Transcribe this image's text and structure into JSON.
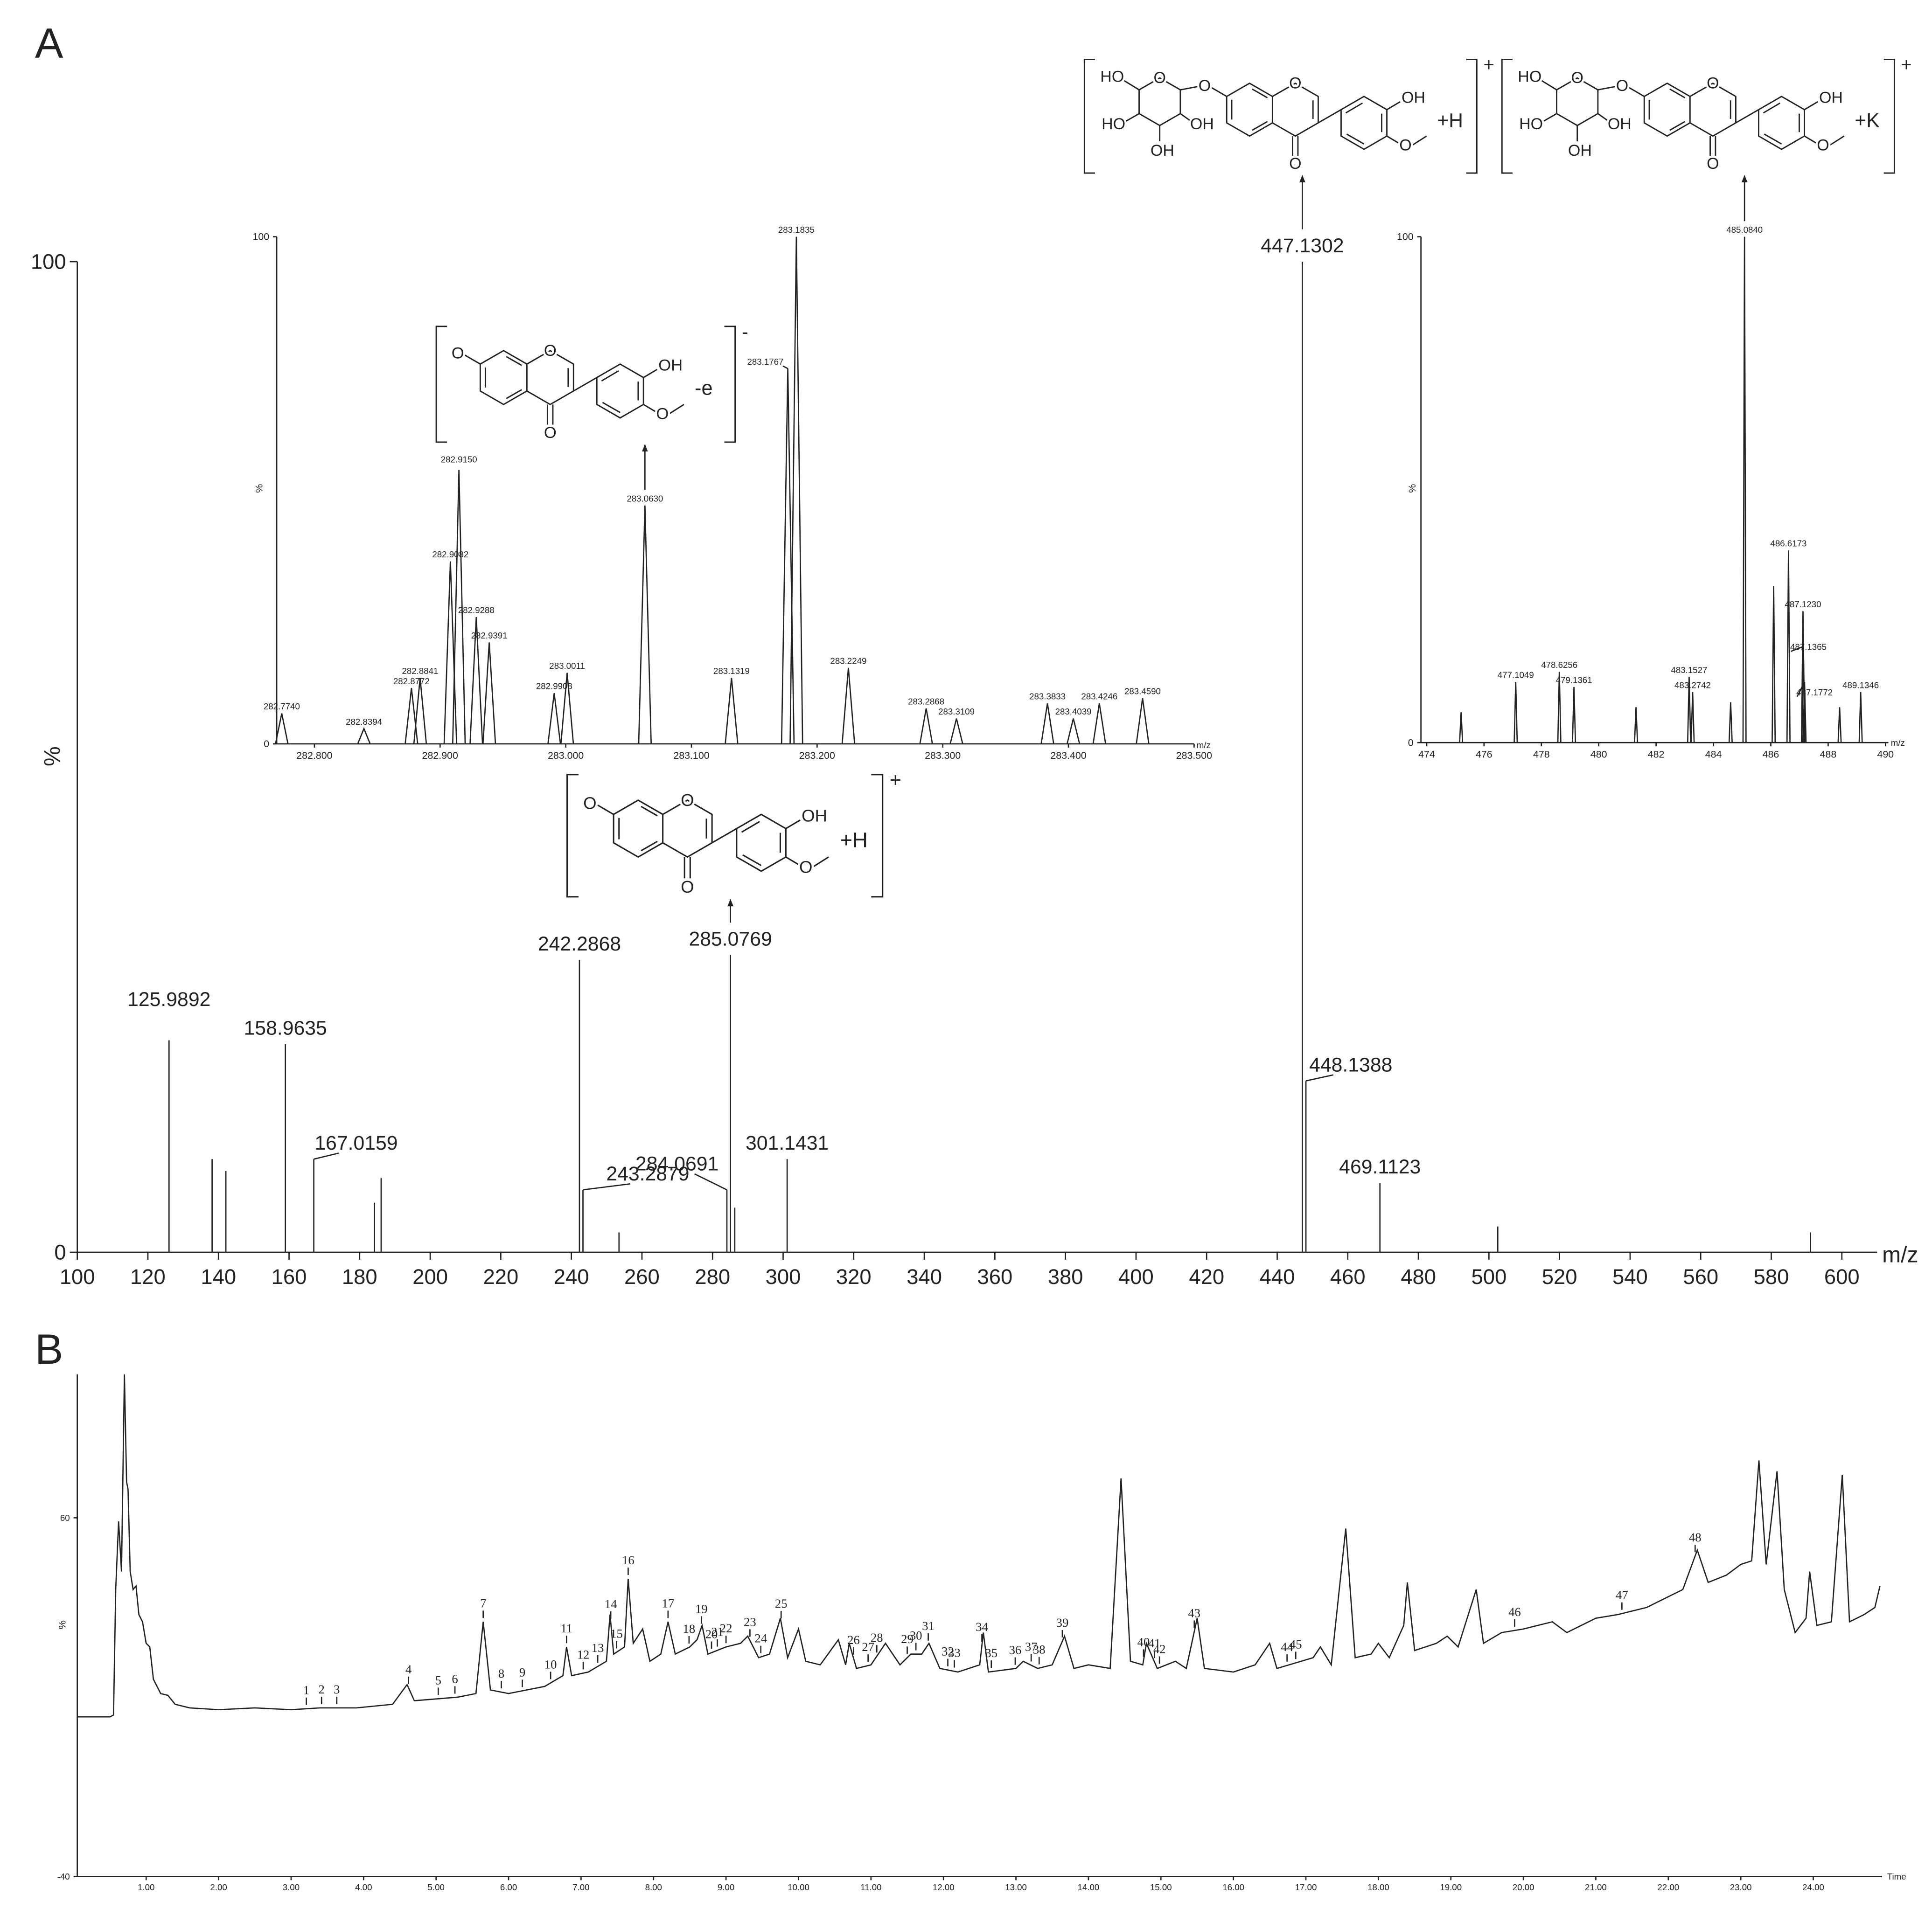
{
  "chart_data": [
    {
      "type": "stem",
      "panel": "A",
      "xlabel": "m/z",
      "ylabel": "%",
      "xlim": [
        100,
        610
      ],
      "ylim": [
        0,
        100
      ],
      "xticks": [
        100,
        120,
        140,
        160,
        180,
        200,
        220,
        240,
        260,
        280,
        300,
        320,
        340,
        360,
        380,
        400,
        420,
        440,
        460,
        480,
        500,
        520,
        540,
        560,
        580,
        600
      ],
      "yticks": [
        0,
        100
      ],
      "x": [
        125.9892,
        158.9635,
        167.0159,
        242.2868,
        243.2879,
        284.0691,
        285.0769,
        301.1431,
        447.1302,
        448.1388,
        469.1123
      ],
      "values": [
        21.4,
        21,
        9.4,
        29.5,
        6.3,
        6.3,
        30,
        9.4,
        100,
        17.3,
        7
      ],
      "minor_peaks": {
        "x": [
          138.2,
          142.1,
          184.2,
          186.1,
          253.5,
          286.3,
          502.5,
          591.1
        ],
        "values": [
          9.4,
          8.2,
          5,
          7.5,
          2,
          4.5,
          2.6,
          2
        ]
      },
      "structures": [
        {
          "atoms": [
            "O",
            "O",
            "O",
            "OH",
            "O"
          ],
          "adduct": "+H",
          "charge": "+"
        },
        {
          "atoms": [
            "O",
            "O",
            "O",
            "OH",
            "O"
          ],
          "sugar_atoms": [
            "HO",
            "O",
            "HO",
            "OH",
            "OH"
          ],
          "adduct": "+H",
          "charge": "+"
        }
      ]
    },
    {
      "type": "profile",
      "xlabel": "m/z",
      "ylabel": "%",
      "xlim": [
        282.77,
        283.5
      ],
      "ylim": [
        0,
        100
      ],
      "xticks": [
        {
          "value": 282.8,
          "label": "282.800"
        },
        {
          "value": 282.9,
          "label": "282.900"
        },
        {
          "value": 283.0,
          "label": "283.000"
        },
        {
          "value": 283.1,
          "label": "283.100"
        },
        {
          "value": 283.2,
          "label": "283.200"
        },
        {
          "value": 283.3,
          "label": "283.300"
        },
        {
          "value": 283.4,
          "label": "283.400"
        },
        {
          "value": 283.5,
          "label": "283.500"
        }
      ],
      "yticks": [
        0,
        100
      ],
      "x": [
        282.774,
        282.8394,
        282.8772,
        282.8841,
        282.9082,
        282.915,
        282.9288,
        282.9391,
        282.9908,
        283.0011,
        283.063,
        283.1319,
        283.1767,
        283.1835,
        283.2249,
        283.2868,
        283.3109,
        283.3833,
        283.4039,
        283.4246,
        283.459
      ],
      "values": [
        6,
        3,
        11,
        13,
        36,
        54,
        25,
        20,
        10,
        14,
        47,
        13,
        74,
        100,
        15,
        7,
        5,
        8,
        5,
        8,
        9
      ],
      "peak_labels": [
        "282.7740",
        "282.8394",
        "282.8772",
        "282.8841",
        "282.9082",
        "282.9150",
        "282.9288",
        "282.9391",
        "282.9908",
        "283.0011",
        "283.0630",
        "283.1319",
        "283.1767",
        "283.1835",
        "283.2249",
        "283.2868",
        "283.3109",
        "283.3833",
        "283.4039",
        "283.4246",
        "283.4590"
      ],
      "structures": [
        {
          "atoms": [
            "O",
            "O",
            "O",
            "OH",
            "O"
          ],
          "adduct": "-e",
          "charge": "-"
        }
      ]
    },
    {
      "type": "profile",
      "xlabel": "m/z",
      "ylabel": "%",
      "xlim": [
        473.8,
        490.1
      ],
      "ylim": [
        0,
        100
      ],
      "xticks": [
        474,
        476,
        478,
        480,
        482,
        484,
        486,
        488,
        490
      ],
      "yticks": [
        0,
        100
      ],
      "x": [
        477.1049,
        478.6256,
        479.1361,
        483.1527,
        483.2742,
        485.084,
        486.6173,
        487.123,
        487.1365,
        487.1772,
        489.1346
      ],
      "values": [
        12,
        14,
        11,
        13,
        10,
        100,
        38,
        26,
        19,
        12,
        10
      ],
      "peak_labels": [
        "477.1049",
        "478.6256",
        "479.1361",
        "483.1527",
        "483.2742",
        "485.0840",
        "486.6173",
        "487.1230",
        "487.1365",
        "487.1772",
        "489.1346"
      ],
      "minor_peaks": {
        "x": [
          486.1,
          475.2,
          481.3,
          484.6,
          488.4
        ],
        "values": [
          31,
          6,
          7,
          8,
          7
        ]
      },
      "structures": [
        {
          "atoms": [
            "O",
            "O",
            "O",
            "OH",
            "O"
          ],
          "sugar_atoms": [
            "HO",
            "O",
            "HO",
            "OH",
            "OH"
          ],
          "adduct": "+K",
          "charge": "+"
        }
      ]
    },
    {
      "type": "line",
      "panel": "B",
      "xlabel": "Time",
      "ylabel": "%",
      "xlim": [
        0.05,
        24.95
      ],
      "ylim": [
        -40,
        100
      ],
      "xticks": [
        {
          "value": 1,
          "label": "1.00"
        },
        {
          "value": 2,
          "label": "2.00"
        },
        {
          "value": 3,
          "label": "3.00"
        },
        {
          "value": 4,
          "label": "4.00"
        },
        {
          "value": 5,
          "label": "5.00"
        },
        {
          "value": 6,
          "label": "6.00"
        },
        {
          "value": 7,
          "label": "7.00"
        },
        {
          "value": 8,
          "label": "8.00"
        },
        {
          "value": 9,
          "label": "9.00"
        },
        {
          "value": 10,
          "label": "10.00"
        },
        {
          "value": 11,
          "label": "11.00"
        },
        {
          "value": 12,
          "label": "12.00"
        },
        {
          "value": 13,
          "label": "13.00"
        },
        {
          "value": 14,
          "label": "14.00"
        },
        {
          "value": 15,
          "label": "15.00"
        },
        {
          "value": 16,
          "label": "16.00"
        },
        {
          "value": 17,
          "label": "17.00"
        },
        {
          "value": 18,
          "label": "18.00"
        },
        {
          "value": 19,
          "label": "19.00"
        },
        {
          "value": 20,
          "label": "20.00"
        },
        {
          "value": 21,
          "label": "21.00"
        },
        {
          "value": 22,
          "label": "22.00"
        },
        {
          "value": 23,
          "label": "23.00"
        },
        {
          "value": 24,
          "label": "24.00"
        }
      ],
      "yticks": [
        -40,
        60
      ],
      "x": [
        0.05,
        0.5,
        0.55,
        0.58,
        0.62,
        0.66,
        0.7,
        0.73,
        0.75,
        0.78,
        0.82,
        0.86,
        0.9,
        0.95,
        1.0,
        1.05,
        1.1,
        1.2,
        1.3,
        1.4,
        1.6,
        2.0,
        2.5,
        3.0,
        3.4,
        3.9,
        4.4,
        4.6,
        4.7,
        5.0,
        5.3,
        5.55,
        5.65,
        5.75,
        6.0,
        6.5,
        6.75,
        6.8,
        6.87,
        7.1,
        7.35,
        7.4,
        7.45,
        7.6,
        7.65,
        7.72,
        7.85,
        7.95,
        8.1,
        8.2,
        8.3,
        8.5,
        8.6,
        8.67,
        8.75,
        9.0,
        9.2,
        9.3,
        9.45,
        9.6,
        9.75,
        9.85,
        10.0,
        10.1,
        10.3,
        10.55,
        10.65,
        10.7,
        10.8,
        11.0,
        11.2,
        11.4,
        11.55,
        11.7,
        11.8,
        11.95,
        12.2,
        12.5,
        12.55,
        12.62,
        13.0,
        13.1,
        13.3,
        13.5,
        13.67,
        13.8,
        14.0,
        14.3,
        14.45,
        14.58,
        14.75,
        14.8,
        14.95,
        15.2,
        15.35,
        15.5,
        15.6,
        16.0,
        16.3,
        16.5,
        16.6,
        17.1,
        17.2,
        17.35,
        17.55,
        17.68,
        17.9,
        18.0,
        18.15,
        18.35,
        18.4,
        18.5,
        18.8,
        18.95,
        19.1,
        19.35,
        19.45,
        19.7,
        20.0,
        20.2,
        20.4,
        20.6,
        21.0,
        21.3,
        21.5,
        21.7,
        22.0,
        22.2,
        22.4,
        22.55,
        22.8,
        23.0,
        23.15,
        23.25,
        23.35,
        23.5,
        23.6,
        23.75,
        23.9,
        23.95,
        24.05,
        24.25,
        24.4,
        24.5,
        24.7,
        24.85,
        24.92
      ],
      "values": [
        4.5,
        4.5,
        5,
        40,
        59,
        45,
        100,
        70,
        68,
        45,
        40,
        41,
        33,
        31,
        25,
        24,
        15,
        11,
        10.5,
        8,
        7,
        6.5,
        7,
        6.5,
        7,
        7,
        8,
        13.5,
        9,
        9.5,
        10,
        11,
        31,
        12,
        11,
        13,
        16,
        24,
        16,
        17,
        20,
        33,
        22,
        24,
        43,
        25,
        29,
        20,
        22,
        31,
        22,
        24,
        26,
        30,
        22,
        24,
        25,
        27,
        21,
        22,
        32,
        21,
        29,
        20,
        19,
        26,
        19,
        25,
        18,
        19,
        25,
        19,
        22,
        22,
        25,
        18,
        17,
        19,
        28,
        17,
        18,
        20,
        18,
        19,
        27,
        18,
        19,
        18,
        71,
        20,
        19,
        25,
        18,
        20,
        18,
        32,
        18,
        17,
        19,
        25,
        18,
        21,
        24,
        19,
        57,
        21,
        22,
        25,
        21,
        30,
        42,
        23,
        25,
        27,
        24,
        40,
        25,
        28,
        29,
        30,
        31,
        28,
        32,
        33,
        34,
        35,
        38,
        40,
        51,
        42,
        44,
        47,
        48,
        76,
        47,
        73,
        40,
        28,
        32,
        45,
        30,
        31,
        72,
        31,
        33,
        35,
        41
      ],
      "peaks": {
        "labels": [
          "1",
          "2",
          "3",
          "4",
          "5",
          "6",
          "7",
          "8",
          "9",
          "10",
          "11",
          "12",
          "13",
          "14",
          "15",
          "16",
          "17",
          "18",
          "19",
          "20",
          "21",
          "22",
          "23",
          "24",
          "25",
          "26",
          "27",
          "28",
          "29",
          "30",
          "31",
          "32",
          "33",
          "34",
          "35",
          "36",
          "37",
          "38",
          "39",
          "40",
          "41",
          "42",
          "43",
          "44",
          "45",
          "46",
          "47",
          "48"
        ],
        "x": [
          3.21,
          3.42,
          3.63,
          4.62,
          5.03,
          5.26,
          5.65,
          5.9,
          6.19,
          6.58,
          6.8,
          7.03,
          7.23,
          7.41,
          7.49,
          7.65,
          8.2,
          8.49,
          8.66,
          8.8,
          8.88,
          9.0,
          9.33,
          9.48,
          9.76,
          10.76,
          10.96,
          11.08,
          11.5,
          11.62,
          11.79,
          12.06,
          12.15,
          12.53,
          12.66,
          12.99,
          13.21,
          13.32,
          13.64,
          14.76,
          14.91,
          14.98,
          15.46,
          16.74,
          16.86,
          19.88,
          21.36,
          22.37
        ]
      }
    }
  ]
}
